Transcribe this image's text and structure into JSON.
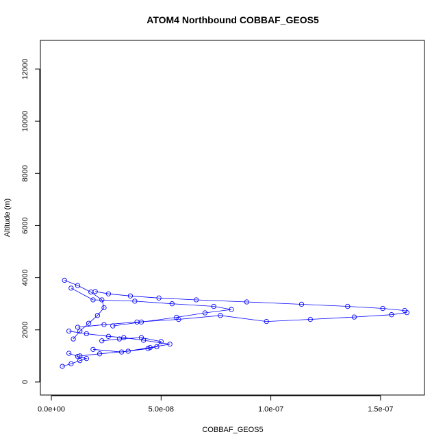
{
  "chart_data": {
    "type": "scatter",
    "title": "ATOM4 Northbound COBBAF_GEOS5",
    "xlabel": "COBBAF_GEOS5",
    "ylabel": "Altitude (m)",
    "xlim": [
      -5e-09,
      1.7e-07
    ],
    "ylim": [
      -500,
      13100
    ],
    "x_ticks": [
      0,
      5e-08,
      1e-07,
      1.5e-07
    ],
    "x_tick_labels": [
      "0.0e+00",
      "5.0e-08",
      "1.0e-07",
      "1.5e-07"
    ],
    "y_ticks": [
      0,
      2000,
      4000,
      6000,
      8000,
      10000,
      12000
    ],
    "y_tick_labels": [
      "0",
      "2000",
      "4000",
      "6000",
      "8000",
      "10000",
      "12000"
    ],
    "marker": "open-circle",
    "line": true,
    "color": "#0000ff",
    "grid": false,
    "series": [
      {
        "values": [
          {
            "x": 1.9e-08,
            "y": 1250
          },
          {
            "x": 3.2e-08,
            "y": 1150
          },
          {
            "x": 4.5e-08,
            "y": 1320
          },
          {
            "x": 5.4e-08,
            "y": 1450
          },
          {
            "x": 4.2e-08,
            "y": 1600
          },
          {
            "x": 3.3e-08,
            "y": 1700
          },
          {
            "x": 2.6e-08,
            "y": 1750
          },
          {
            "x": 1.6e-08,
            "y": 1850
          },
          {
            "x": 8e-09,
            "y": 1950
          }
        ]
      },
      {
        "values": [
          {
            "x": 1.2e-08,
            "y": 2100
          },
          {
            "x": 2.4e-08,
            "y": 2200
          },
          {
            "x": 3.9e-08,
            "y": 2300
          },
          {
            "x": 5.8e-08,
            "y": 2400
          },
          {
            "x": 7.7e-08,
            "y": 2550
          },
          {
            "x": 9.8e-08,
            "y": 2320
          },
          {
            "x": 1.18e-07,
            "y": 2400
          },
          {
            "x": 1.38e-07,
            "y": 2490
          },
          {
            "x": 1.55e-07,
            "y": 2580
          },
          {
            "x": 1.62e-07,
            "y": 2660
          }
        ]
      },
      {
        "values": [
          {
            "x": 1.61e-07,
            "y": 2740
          },
          {
            "x": 1.51e-07,
            "y": 2820
          },
          {
            "x": 1.35e-07,
            "y": 2900
          },
          {
            "x": 1.14e-07,
            "y": 2980
          },
          {
            "x": 8.9e-08,
            "y": 3070
          },
          {
            "x": 6.6e-08,
            "y": 3150
          },
          {
            "x": 4.9e-08,
            "y": 3220
          },
          {
            "x": 3.6e-08,
            "y": 3300
          },
          {
            "x": 2.6e-08,
            "y": 3380
          },
          {
            "x": 2e-08,
            "y": 3470
          }
        ]
      },
      {
        "values": [
          {
            "x": 9e-09,
            "y": 3600
          },
          {
            "x": 1.9e-08,
            "y": 3150
          },
          {
            "x": 3.8e-08,
            "y": 3100
          },
          {
            "x": 5.5e-08,
            "y": 3000
          },
          {
            "x": 7.4e-08,
            "y": 2900
          },
          {
            "x": 8.2e-08,
            "y": 2780
          },
          {
            "x": 7e-08,
            "y": 2650
          },
          {
            "x": 5.7e-08,
            "y": 2480
          },
          {
            "x": 4.1e-08,
            "y": 2300
          },
          {
            "x": 2.8e-08,
            "y": 2150
          }
        ]
      },
      {
        "values": [
          {
            "x": 6e-09,
            "y": 3900
          },
          {
            "x": 1.2e-08,
            "y": 3700
          },
          {
            "x": 1.8e-08,
            "y": 3450
          },
          {
            "x": 2.3e-08,
            "y": 3150
          },
          {
            "x": 2.4e-08,
            "y": 2850
          },
          {
            "x": 2.1e-08,
            "y": 2550
          },
          {
            "x": 1.7e-08,
            "y": 2250
          },
          {
            "x": 1.3e-08,
            "y": 1950
          },
          {
            "x": 1e-08,
            "y": 1650
          }
        ]
      },
      {
        "values": [
          {
            "x": 1.3e-08,
            "y": 1000
          },
          {
            "x": 2.2e-08,
            "y": 1080
          },
          {
            "x": 3.5e-08,
            "y": 1180
          },
          {
            "x": 4.4e-08,
            "y": 1280
          },
          {
            "x": 4.8e-08,
            "y": 1350
          },
          {
            "x": 5e-08,
            "y": 1550
          },
          {
            "x": 4.1e-08,
            "y": 1700
          },
          {
            "x": 3.1e-08,
            "y": 1650
          },
          {
            "x": 2.3e-08,
            "y": 1580
          }
        ]
      },
      {
        "values": [
          {
            "x": 5e-09,
            "y": 600
          },
          {
            "x": 9e-09,
            "y": 700
          },
          {
            "x": 1.3e-08,
            "y": 820
          },
          {
            "x": 1.6e-08,
            "y": 900
          },
          {
            "x": 1.2e-08,
            "y": 980
          },
          {
            "x": 8e-09,
            "y": 1100
          }
        ]
      }
    ]
  }
}
